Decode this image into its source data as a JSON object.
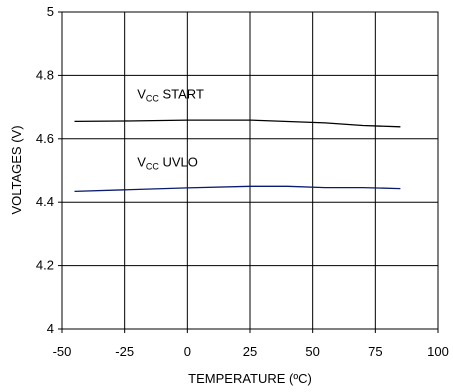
{
  "chart_data": {
    "type": "line",
    "title": "",
    "xlabel": "TEMPERATURE (ºC)",
    "ylabel": "VOLTAGES (V)",
    "xlim": [
      -50,
      100
    ],
    "ylim": [
      4,
      5
    ],
    "xticks": [
      -50,
      -25,
      0,
      25,
      50,
      75,
      100
    ],
    "yticks": [
      4,
      4.2,
      4.4,
      4.6,
      4.8,
      5
    ],
    "ytick_labels": [
      "4",
      "4.2",
      "4.4",
      "4.6",
      "4.8",
      "5"
    ],
    "grid": true,
    "series": [
      {
        "name": "VCC START",
        "label_main": "V",
        "label_sub": "CC",
        "label_rest": " START",
        "color": "#000000",
        "x": [
          -45,
          -25,
          0,
          25,
          55,
          70,
          85
        ],
        "y": [
          4.655,
          4.656,
          4.659,
          4.659,
          4.65,
          4.642,
          4.638
        ]
      },
      {
        "name": "VCC UVLO",
        "label_main": "V",
        "label_sub": "CC",
        "label_rest": " UVLO",
        "color": "#0a1a6e",
        "x": [
          -45,
          -25,
          0,
          25,
          40,
          55,
          70,
          85
        ],
        "y": [
          4.434,
          4.439,
          4.445,
          4.45,
          4.45,
          4.446,
          4.446,
          4.443
        ]
      }
    ]
  }
}
